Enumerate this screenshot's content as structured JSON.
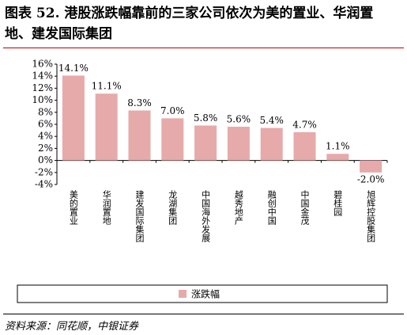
{
  "chart_data": {
    "type": "bar",
    "title": "图表 52. 港股涨跌幅靠前的三家公司依次为美的置业、华润置地、建发国际集团",
    "categories": [
      "美的置业",
      "华润置地",
      "建发国际集团",
      "龙湖集团",
      "中国海外发展",
      "越秀地产",
      "融创中国",
      "中国金茂",
      "碧桂园",
      "旭辉控股集团"
    ],
    "series": [
      {
        "name": "涨跌幅",
        "color": "#e6aaab",
        "values": [
          14.1,
          11.1,
          8.3,
          7.0,
          5.8,
          5.6,
          5.4,
          4.7,
          1.1,
          -2.0
        ],
        "value_labels": [
          "14.1%",
          "11.1%",
          "8.3%",
          "7.0%",
          "5.8%",
          "5.6%",
          "5.4%",
          "4.7%",
          "1.1%",
          "-2.0%"
        ]
      }
    ],
    "ylim": [
      -4,
      16
    ],
    "yticks": [
      {
        "value": -4,
        "label": "-4%"
      },
      {
        "value": -2,
        "label": "-2%"
      },
      {
        "value": 0,
        "label": "0%"
      },
      {
        "value": 2,
        "label": "2%"
      },
      {
        "value": 4,
        "label": "4%"
      },
      {
        "value": 6,
        "label": "6%"
      },
      {
        "value": 8,
        "label": "8%"
      },
      {
        "value": 10,
        "label": "10%"
      },
      {
        "value": 12,
        "label": "12%"
      },
      {
        "value": 14,
        "label": "14%"
      },
      {
        "value": 16,
        "label": "16%"
      }
    ],
    "source": "资料来源：同花顺，中银证券"
  }
}
